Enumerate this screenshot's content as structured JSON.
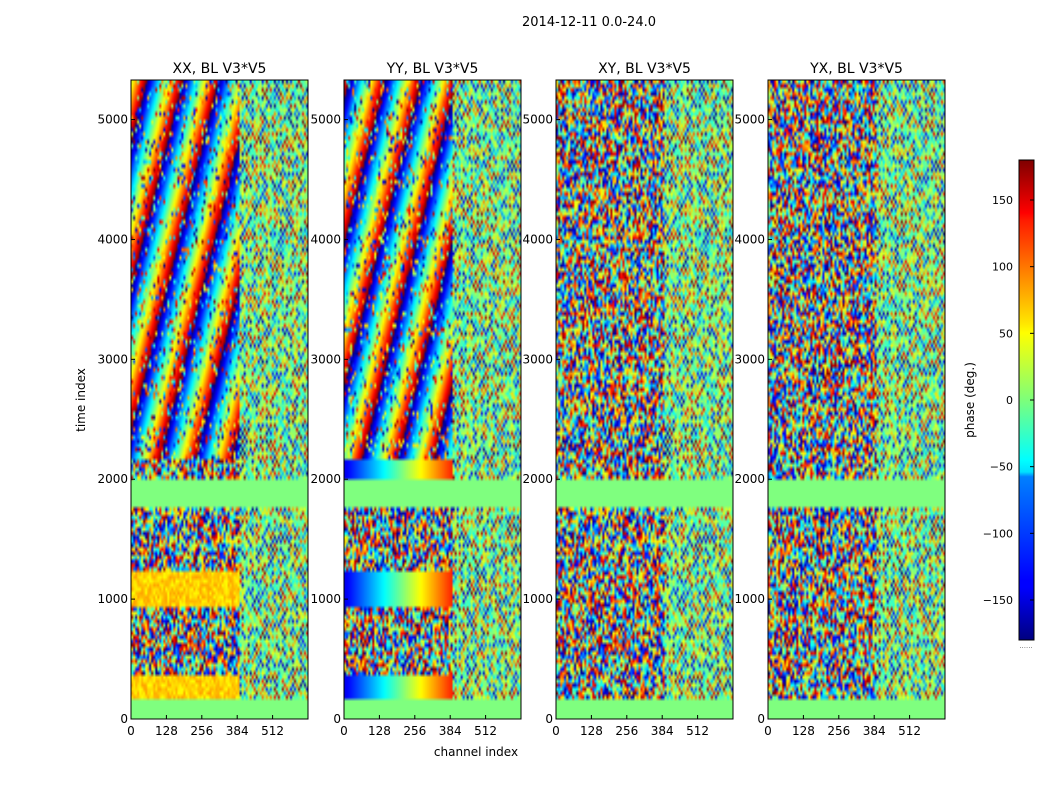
{
  "figure": {
    "suptitle": "2014-12-11 0.0-24.0"
  },
  "chart_data": {
    "type": "heatmap",
    "xlabel": "channel index",
    "ylabel": "time index",
    "x_ticks": [
      0,
      128,
      256,
      384,
      512
    ],
    "y_ticks": [
      0,
      1000,
      2000,
      3000,
      4000,
      5000
    ],
    "xlim": [
      0,
      640
    ],
    "ylim": [
      0,
      5330
    ],
    "colormap": "jet",
    "colorbar": {
      "label": "phase (deg.)",
      "range": [
        -180,
        180
      ],
      "ticks": [
        150,
        100,
        50,
        0,
        -50,
        -100,
        -150
      ],
      "tick_labels": [
        "150",
        "100",
        "50",
        "0",
        "−50",
        "−100",
        "−150"
      ],
      "footer_text": "......"
    },
    "panels": [
      {
        "title": "XX, BL V3*V5",
        "pol": "XX"
      },
      {
        "title": "YY, BL V3*V5",
        "pol": "YY"
      },
      {
        "title": "XY, BL V3*V5",
        "pol": "XY"
      },
      {
        "title": "YX, BL V3*V5",
        "pol": "YX"
      }
    ]
  }
}
